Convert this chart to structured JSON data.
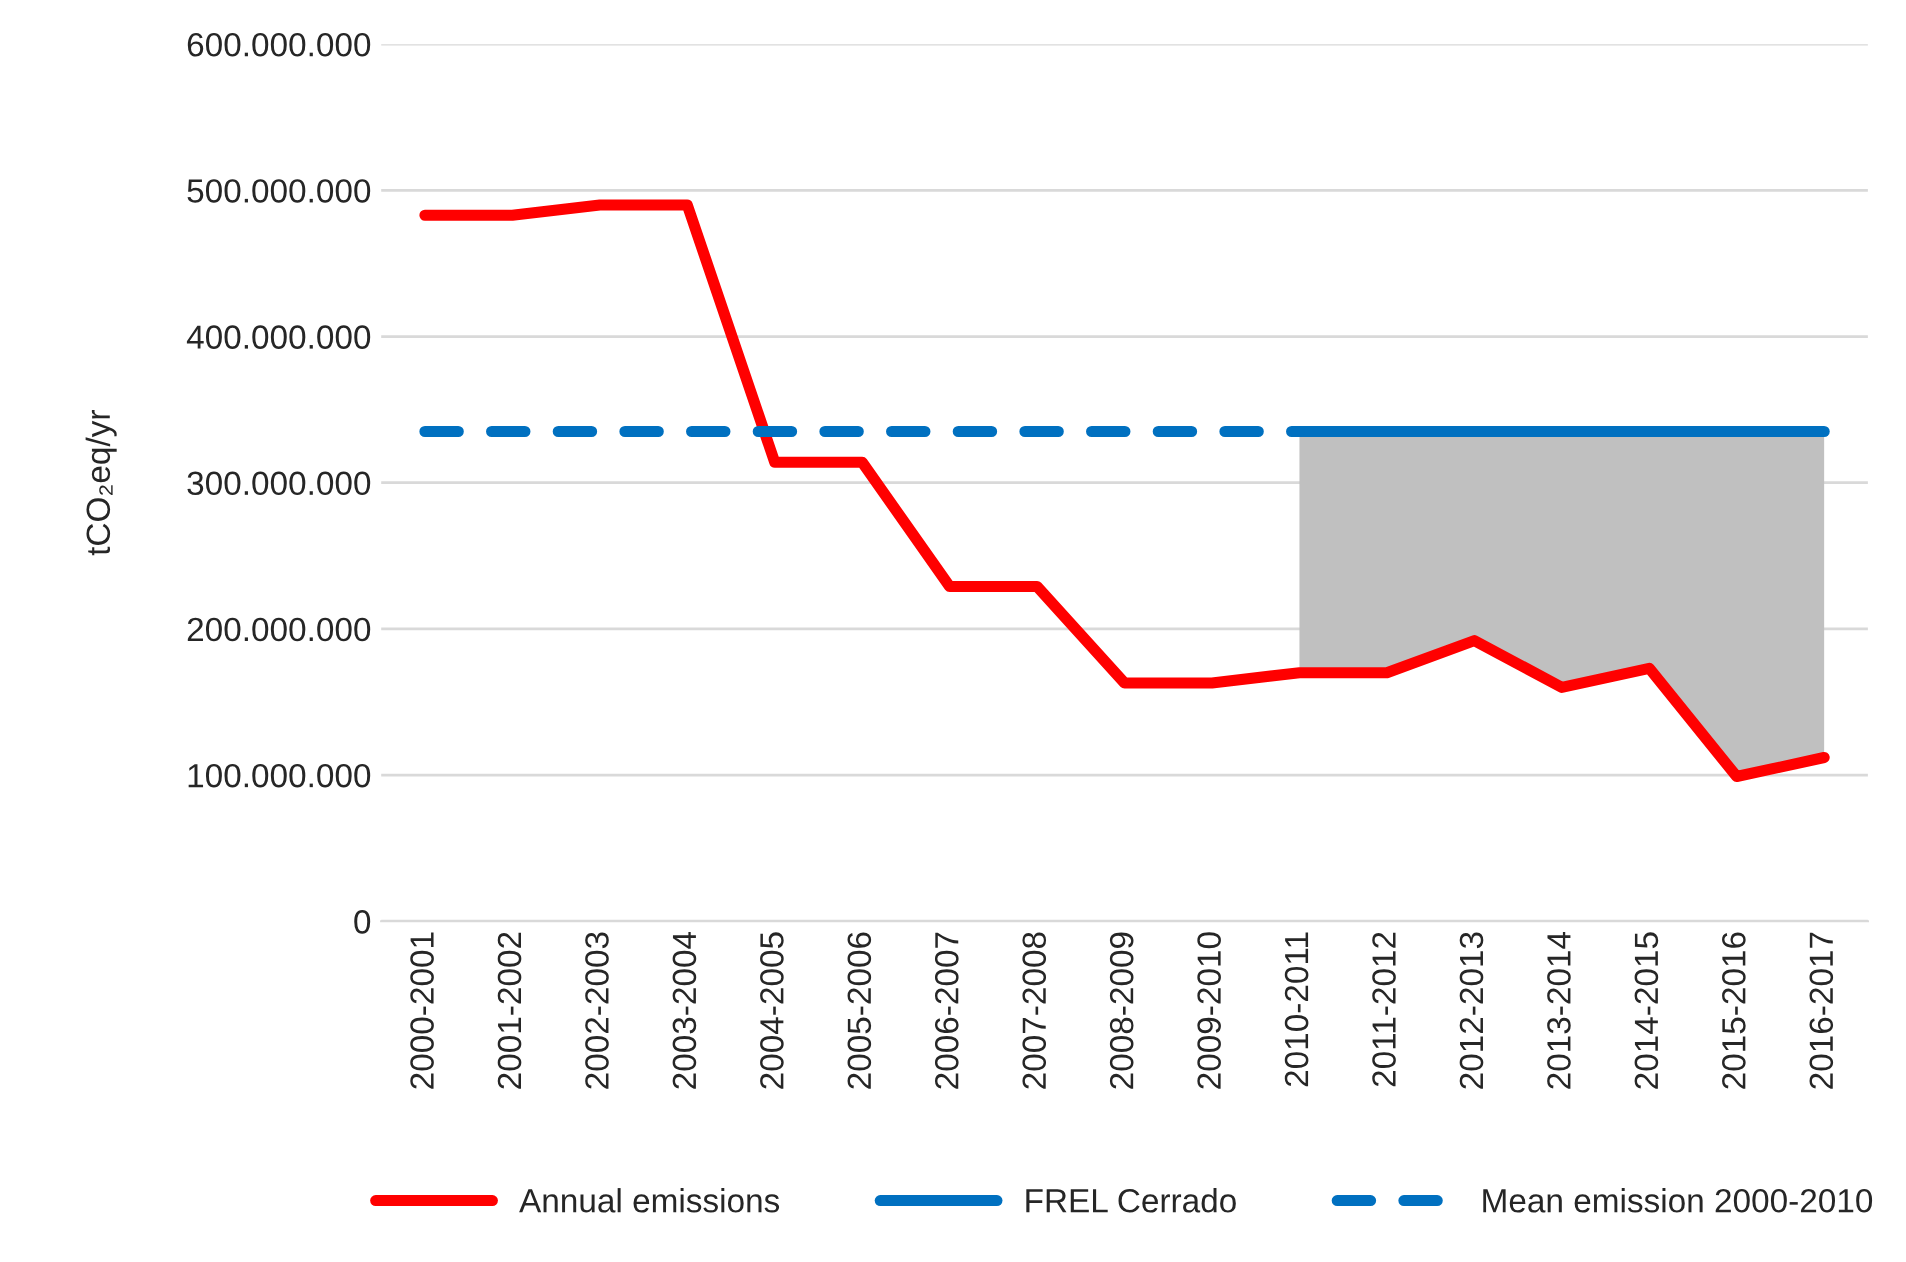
{
  "chart_data": {
    "type": "line",
    "ylabel": "tCO₂eq/yr",
    "categories": [
      "2000-2001",
      "2001-2002",
      "2002-2003",
      "2003-2004",
      "2004-2005",
      "2005-2006",
      "2006-2007",
      "2007-2008",
      "2008-2009",
      "2009-2010",
      "2010-2011",
      "2011-2012",
      "2012-2013",
      "2013-2014",
      "2014-2015",
      "2015-2016",
      "2016-2017"
    ],
    "series": [
      {
        "name": "Annual emissions",
        "color": "#ff0000",
        "line_style": "solid",
        "values": [
          483000000,
          483000000,
          490000000,
          490000000,
          314000000,
          314000000,
          229000000,
          229000000,
          163000000,
          163000000,
          170000000,
          170000000,
          192000000,
          160000000,
          173000000,
          99000000,
          112000000
        ]
      },
      {
        "name": "FREL Cerrado",
        "color": "#0070c0",
        "line_style": "solid",
        "values": [
          null,
          null,
          null,
          null,
          null,
          null,
          null,
          null,
          null,
          null,
          335000000,
          335000000,
          335000000,
          335000000,
          335000000,
          335000000,
          335000000
        ],
        "lower": [
          null,
          null,
          null,
          null,
          null,
          null,
          null,
          null,
          null,
          null,
          170000000,
          170000000,
          192000000,
          160000000,
          173000000,
          99000000,
          112000000
        ],
        "upper": [
          null,
          null,
          null,
          null,
          null,
          null,
          null,
          null,
          null,
          null,
          335000000,
          335000000,
          335000000,
          335000000,
          335000000,
          335000000,
          335000000
        ]
      },
      {
        "name": "Mean emission 2000-2010",
        "color": "#0070c0",
        "line_style": "dashed",
        "values": [
          335000000,
          335000000,
          335000000,
          335000000,
          335000000,
          335000000,
          335000000,
          335000000,
          335000000,
          335000000,
          335000000,
          null,
          null,
          null,
          null,
          null,
          null
        ]
      }
    ],
    "ylim": [
      0,
      600000000
    ],
    "yticks": [
      {
        "value": 0,
        "label": "0"
      },
      {
        "value": 100000000,
        "label": "100.000.000"
      },
      {
        "value": 200000000,
        "label": "200.000.000"
      },
      {
        "value": 300000000,
        "label": "300.000.000"
      },
      {
        "value": 400000000,
        "label": "400.000.000"
      },
      {
        "value": 500000000,
        "label": "500.000.000"
      },
      {
        "value": 600000000,
        "label": "600.000.000"
      }
    ],
    "grid": "y",
    "legend": "bottom",
    "marker": "none"
  }
}
